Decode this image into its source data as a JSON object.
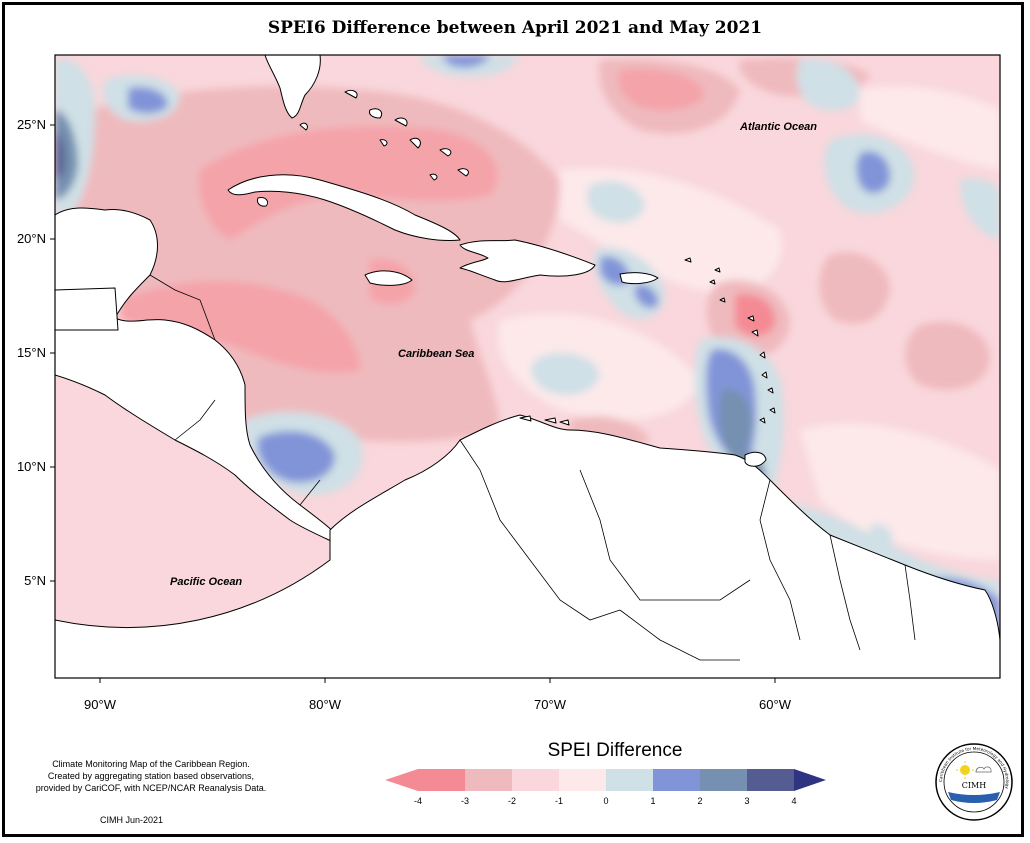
{
  "title": "SPEI6 Difference between April 2021 and May 2021",
  "map": {
    "lon_range": [
      -92,
      -50
    ],
    "lat_range": [
      0.5,
      28
    ],
    "lat_ticks": [
      "25°N",
      "20°N",
      "15°N",
      "10°N",
      "5°N"
    ],
    "lon_ticks": [
      "90°W",
      "80°W",
      "70°W",
      "60°W"
    ],
    "labels": {
      "atlantic": "Atlantic Ocean",
      "caribbean": "Caribbean Sea",
      "pacific": "Pacific Ocean"
    },
    "colors": {
      "land": "#ffffff",
      "coastline": "#000000"
    }
  },
  "legend": {
    "title": "SPEI Difference",
    "ticks": [
      "-4",
      "-3",
      "-2",
      "-1",
      "0",
      "1",
      "2",
      "3",
      "4"
    ],
    "colors": [
      "#f48a94",
      "#f4a3a9",
      "#efbabd",
      "#f9d7dc",
      "#fde9ea",
      "#cfe0e6",
      "#8294d8",
      "#7590b0",
      "#545c92",
      "#2f3480"
    ]
  },
  "credits": {
    "line1": "Climate Monitoring Map of the Caribbean Region.",
    "line2": "Created by aggregating station based observations,",
    "line3": "provided by CariCOF, with NCEP/NCAR Reanalysis Data.",
    "date": "CIMH Jun-2021"
  },
  "logo": {
    "abbr": "CIMH",
    "ring_text": "Caribbean Institute for Meteorology and Hydrology"
  }
}
